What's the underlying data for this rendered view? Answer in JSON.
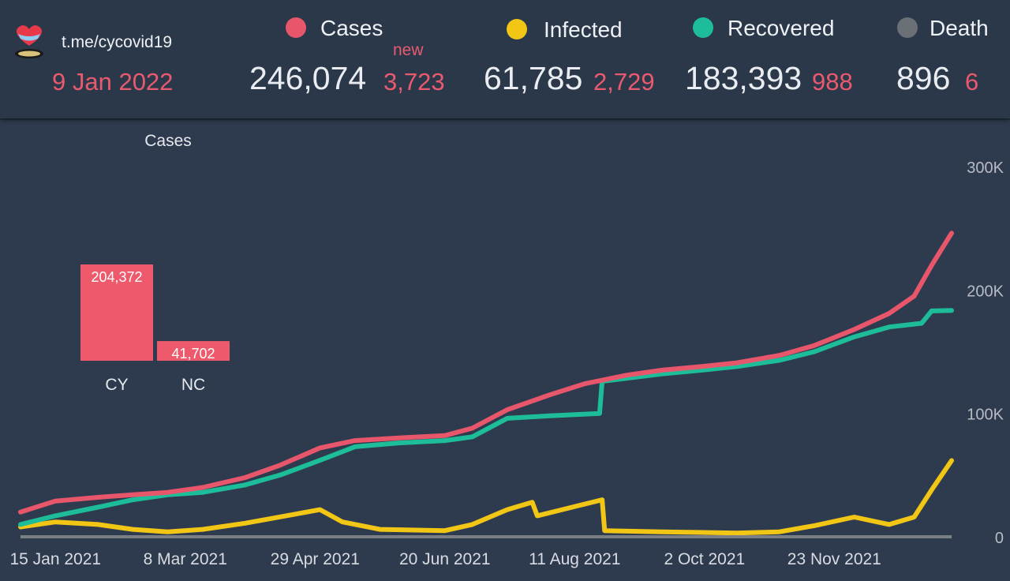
{
  "header": {
    "channel": "t.me/cycovid19",
    "date": "9 Jan 2022",
    "new_label": "new",
    "stats": [
      {
        "key": "cases",
        "label": "Cases",
        "value": "246,074",
        "delta": "3,723",
        "color": "#e8566b"
      },
      {
        "key": "infected",
        "label": "Infected",
        "value": "61,785",
        "delta": "2,729",
        "color": "#f2c615"
      },
      {
        "key": "recovered",
        "label": "Recovered",
        "value": "183,393",
        "delta": "988",
        "color": "#1ebd9a"
      },
      {
        "key": "death",
        "label": "Death",
        "value": "896",
        "delta": "6",
        "color": "#6b7077"
      }
    ]
  },
  "colors": {
    "background": "#2e3b4e",
    "header": "#2b384a",
    "accent_red": "#e8566b",
    "yellow": "#f2c615",
    "green": "#1ebd9a",
    "axis": "#7b7f86"
  },
  "chart_data": [
    {
      "type": "line",
      "x_type": "date",
      "x_ticks": [
        "15 Jan 2021",
        "8 Mar 2021",
        "29 Apr 2021",
        "20 Jun 2021",
        "11 Aug 2021",
        "2 Oct 2021",
        "23 Nov 2021"
      ],
      "xlim": [
        "2021-01-01",
        "2022-01-09"
      ],
      "y_ticks": [
        "0",
        "100K",
        "200K",
        "300K"
      ],
      "ylim": [
        0,
        300000
      ],
      "y_axis_position": "right",
      "grid": false,
      "legend": "header",
      "series": [
        {
          "name": "Cases",
          "color": "#e8566b",
          "points": [
            [
              "2021-01-01",
              20000
            ],
            [
              "2021-01-15",
              29000
            ],
            [
              "2021-02-01",
              32000
            ],
            [
              "2021-02-15",
              34000
            ],
            [
              "2021-03-01",
              36000
            ],
            [
              "2021-03-15",
              40000
            ],
            [
              "2021-04-01",
              48000
            ],
            [
              "2021-04-15",
              58000
            ],
            [
              "2021-05-01",
              72000
            ],
            [
              "2021-05-15",
              78000
            ],
            [
              "2021-06-01",
              80000
            ],
            [
              "2021-06-20",
              82000
            ],
            [
              "2021-07-01",
              88000
            ],
            [
              "2021-07-15",
              103000
            ],
            [
              "2021-08-01",
              115000
            ],
            [
              "2021-08-15",
              124000
            ],
            [
              "2021-09-01",
              131000
            ],
            [
              "2021-09-15",
              135000
            ],
            [
              "2021-10-01",
              138000
            ],
            [
              "2021-10-15",
              141000
            ],
            [
              "2021-11-01",
              147000
            ],
            [
              "2021-11-15",
              155000
            ],
            [
              "2021-12-01",
              168000
            ],
            [
              "2021-12-15",
              181000
            ],
            [
              "2021-12-25",
              195000
            ],
            [
              "2022-01-01",
              220000
            ],
            [
              "2022-01-09",
              246074
            ]
          ]
        },
        {
          "name": "Recovered",
          "color": "#1ebd9a",
          "points": [
            [
              "2021-01-01",
              10000
            ],
            [
              "2021-01-15",
              17000
            ],
            [
              "2021-02-01",
              24000
            ],
            [
              "2021-02-15",
              30000
            ],
            [
              "2021-03-01",
              34000
            ],
            [
              "2021-03-15",
              36000
            ],
            [
              "2021-04-01",
              42000
            ],
            [
              "2021-04-15",
              50000
            ],
            [
              "2021-05-01",
              62000
            ],
            [
              "2021-05-15",
              73000
            ],
            [
              "2021-06-01",
              76000
            ],
            [
              "2021-06-20",
              78000
            ],
            [
              "2021-07-01",
              81000
            ],
            [
              "2021-07-15",
              96000
            ],
            [
              "2021-08-01",
              98000
            ],
            [
              "2021-08-21",
              100000
            ],
            [
              "2021-08-22",
              126000
            ],
            [
              "2021-09-15",
              132000
            ],
            [
              "2021-10-01",
              135000
            ],
            [
              "2021-10-15",
              138000
            ],
            [
              "2021-11-01",
              143000
            ],
            [
              "2021-11-15",
              150000
            ],
            [
              "2021-12-01",
              162000
            ],
            [
              "2021-12-15",
              170000
            ],
            [
              "2021-12-28",
              173000
            ],
            [
              "2022-01-01",
              183000
            ],
            [
              "2022-01-09",
              183393
            ]
          ]
        },
        {
          "name": "Infected",
          "color": "#f2c615",
          "points": [
            [
              "2021-01-01",
              8000
            ],
            [
              "2021-01-15",
              12000
            ],
            [
              "2021-02-01",
              10000
            ],
            [
              "2021-02-15",
              6000
            ],
            [
              "2021-03-01",
              4000
            ],
            [
              "2021-03-15",
              6000
            ],
            [
              "2021-04-01",
              11000
            ],
            [
              "2021-04-20",
              18000
            ],
            [
              "2021-05-01",
              22000
            ],
            [
              "2021-05-10",
              12000
            ],
            [
              "2021-05-25",
              6000
            ],
            [
              "2021-06-20",
              5000
            ],
            [
              "2021-07-01",
              10000
            ],
            [
              "2021-07-15",
              22000
            ],
            [
              "2021-07-25",
              28000
            ],
            [
              "2021-07-27",
              17000
            ],
            [
              "2021-08-10",
              24000
            ],
            [
              "2021-08-22",
              30000
            ],
            [
              "2021-08-23",
              5000
            ],
            [
              "2021-09-15",
              4000
            ],
            [
              "2021-10-15",
              3000
            ],
            [
              "2021-11-01",
              4000
            ],
            [
              "2021-11-15",
              9000
            ],
            [
              "2021-12-01",
              16000
            ],
            [
              "2021-12-15",
              10000
            ],
            [
              "2021-12-25",
              16000
            ],
            [
              "2022-01-01",
              38000
            ],
            [
              "2022-01-09",
              61785
            ]
          ]
        },
        {
          "name": "Death",
          "color": "#7b7f86",
          "points": [
            [
              "2021-01-01",
              0
            ],
            [
              "2022-01-09",
              896
            ]
          ]
        }
      ]
    },
    {
      "type": "bar",
      "title": "Cases",
      "categories": [
        "CY",
        "NC"
      ],
      "values": [
        204372,
        41702
      ],
      "value_labels": [
        "204,372",
        "41,702"
      ],
      "color": "#ee5a6c"
    }
  ]
}
